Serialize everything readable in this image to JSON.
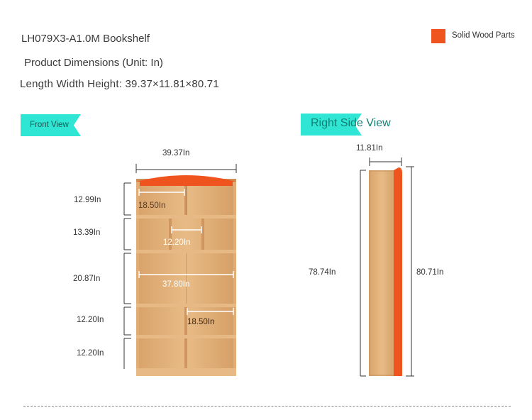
{
  "header": {
    "title": "LH079X3-A1.0M Bookshelf",
    "subtitle": "Product Dimensions (Unit: In)",
    "dimensions": "Length Width Height: 39.37×11.81×80.71"
  },
  "legend": {
    "label": "Solid Wood Parts",
    "color": "#f0541e"
  },
  "views": {
    "front": "Front View",
    "right": "Right Side View"
  },
  "front_dims": {
    "width": "39.37In",
    "shelf1": "12.99In",
    "shelf2": "13.39In",
    "shelf3": "20.87In",
    "shelf4": "12.20In",
    "shelf5": "12.20In",
    "inner_top": "18.50In",
    "inner_mid": "12.20In",
    "inner_wide": "37.80In",
    "inner_low": "18.50In"
  },
  "side_dims": {
    "depth": "11.81In",
    "inner_height": "78.74In",
    "total_height": "80.71In"
  },
  "colors": {
    "wood": "#e3b27d",
    "wood_dark": "#c9915a",
    "solid": "#f0541e",
    "accent": "#2ee6d3"
  }
}
